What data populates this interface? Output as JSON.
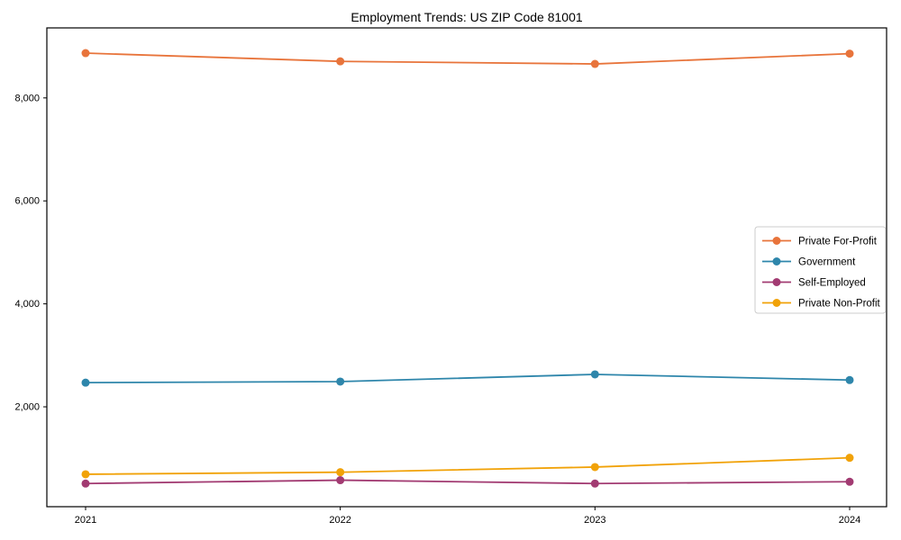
{
  "chart_data": {
    "type": "line",
    "title": "Employment Trends: US ZIP Code 81001",
    "x": [
      "2021",
      "2022",
      "2023",
      "2024"
    ],
    "series": [
      {
        "name": "Private For-Profit",
        "color": "#E8743B",
        "values": [
          8870,
          8710,
          8660,
          8860
        ]
      },
      {
        "name": "Government",
        "color": "#2E86AB",
        "values": [
          2470,
          2490,
          2630,
          2520
        ]
      },
      {
        "name": "Self-Employed",
        "color": "#A23B72",
        "values": [
          510,
          575,
          510,
          545
        ]
      },
      {
        "name": "Private Non-Profit",
        "color": "#F1A208",
        "values": [
          690,
          730,
          830,
          1010
        ]
      }
    ],
    "yticks": [
      2000,
      4000,
      6000,
      8000
    ],
    "ytick_labels": [
      "2,000",
      "4,000",
      "6,000",
      "8,000"
    ],
    "ylim": [
      60,
      9360
    ],
    "xlabel": "",
    "ylabel": "",
    "grid": false,
    "legend_position": "center right",
    "marker": "circle",
    "background": "#ffffff",
    "axis_color": "#000000",
    "legend_border_color": "#cccccc"
  }
}
